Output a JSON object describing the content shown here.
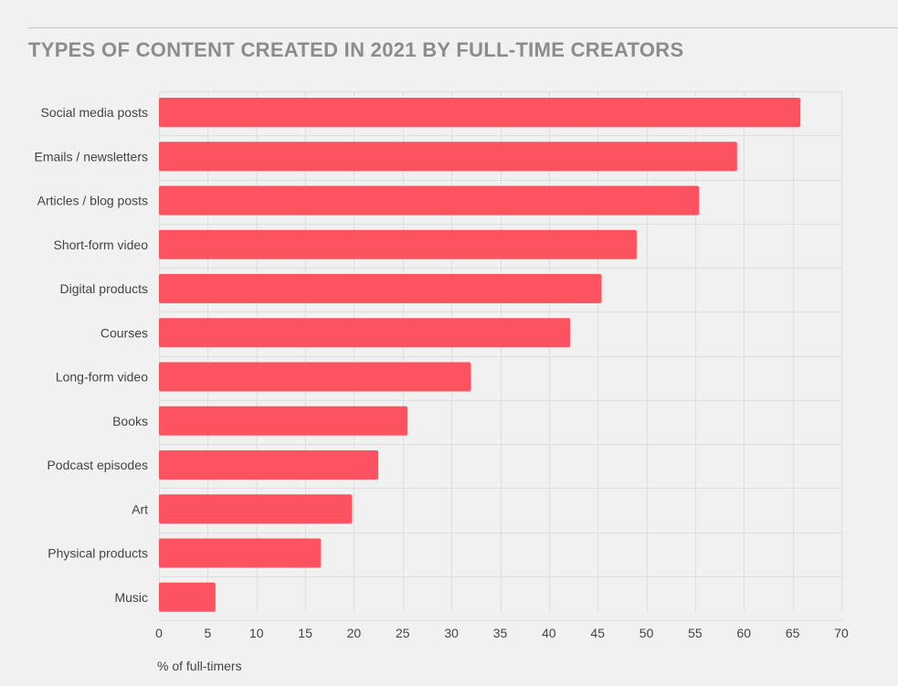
{
  "chart_data": {
    "type": "bar",
    "orientation": "horizontal",
    "title": "TYPES OF CONTENT CREATED IN 2021 BY FULL-TIME CREATORS",
    "xlabel": "% of full-timers",
    "ylabel": "",
    "categories": [
      "Social media posts",
      "Emails / newsletters",
      "Articles / blog posts",
      "Short-form video",
      "Digital products",
      "Courses",
      "Long-form video",
      "Books",
      "Podcast episodes",
      "Art",
      "Physical products",
      "Music"
    ],
    "values": [
      65.8,
      59.3,
      55.4,
      49.0,
      45.4,
      42.2,
      32.0,
      25.5,
      22.5,
      19.8,
      16.6,
      5.8
    ],
    "xlim": [
      0,
      70
    ],
    "xticks": [
      0,
      5,
      10,
      15,
      20,
      25,
      30,
      35,
      40,
      45,
      50,
      55,
      60,
      65,
      70
    ],
    "grid": true,
    "colors": {
      "bar": "#fd525f",
      "grid": "#dedede",
      "title": "#8c8c8c",
      "text": "#444444"
    }
  }
}
